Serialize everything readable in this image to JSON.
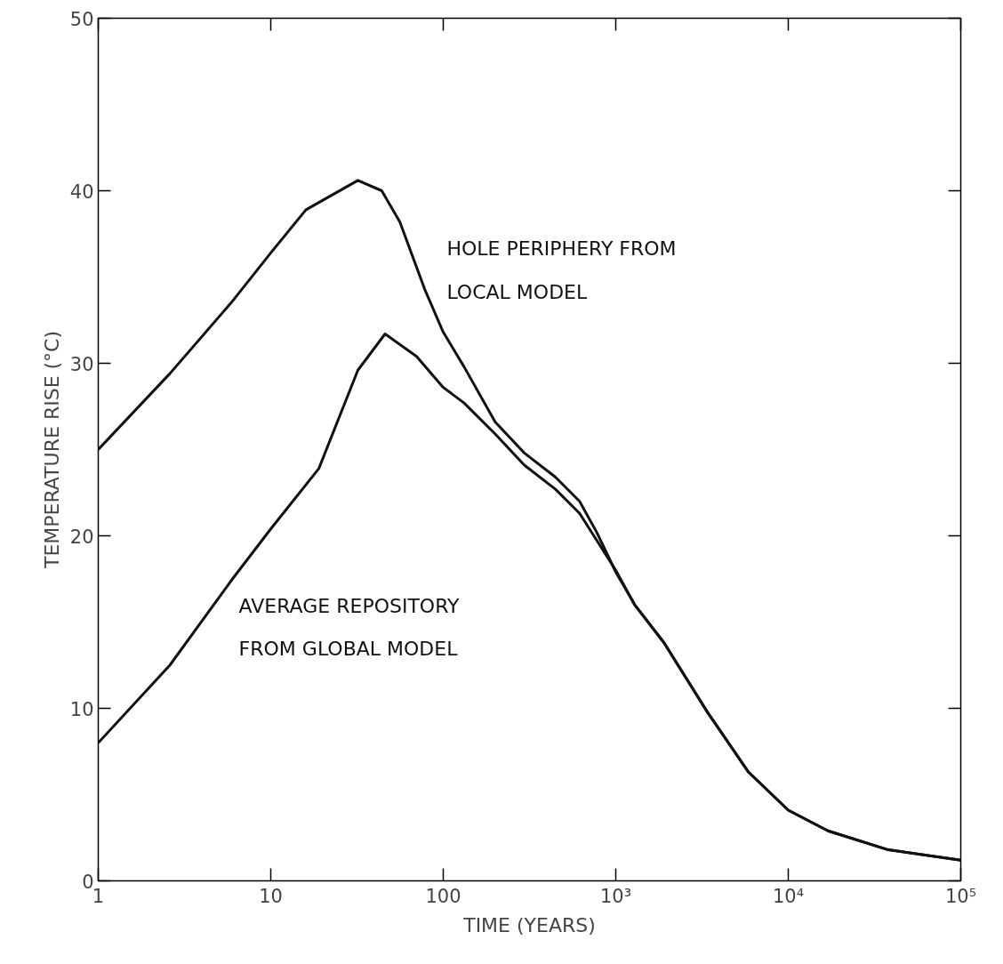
{
  "chart_data": {
    "type": "line",
    "xlabel": "TIME (YEARS)",
    "ylabel": "TEMPERATURE RISE (°C)",
    "log": "x",
    "xlim": [
      1,
      100000
    ],
    "xticks": [
      1,
      10,
      100,
      {
        "value": 1000,
        "label": "10³"
      },
      {
        "value": 10000,
        "label": "10⁴"
      },
      {
        "value": 100000,
        "label": "10⁵"
      }
    ],
    "ylim": [
      0,
      50
    ],
    "yticks": [
      0,
      10,
      20,
      30,
      40,
      50
    ],
    "grid": false,
    "marker": "none",
    "line_style": "solid",
    "series": [
      {
        "color": "#111111",
        "x": [
          1,
          2.6,
          6,
          10,
          16,
          32,
          44,
          56,
          78,
          100,
          132,
          200,
          295,
          447,
          617,
          776,
          1000,
          1288,
          1905,
          3388,
          5888,
          10000,
          16982,
          38019,
          100000
        ],
        "values": [
          25.0,
          29.4,
          33.6,
          36.4,
          38.9,
          40.6,
          40.0,
          38.2,
          34.3,
          31.8,
          29.8,
          26.6,
          24.8,
          23.4,
          22.0,
          20.2,
          17.9,
          16.0,
          13.8,
          9.8,
          6.3,
          4.1,
          2.9,
          1.8,
          1.2
        ]
      },
      {
        "color": "#111111",
        "x": [
          1,
          2.6,
          6,
          10,
          19,
          32,
          46,
          70,
          100,
          132,
          200,
          295,
          447,
          617,
          1000,
          1288,
          1905,
          3388,
          5888,
          10000,
          16982,
          38019,
          100000
        ],
        "values": [
          8.0,
          12.5,
          17.5,
          20.4,
          23.9,
          29.6,
          31.7,
          30.4,
          28.6,
          27.7,
          25.9,
          24.1,
          22.7,
          21.3,
          18.0,
          16.0,
          13.8,
          9.8,
          6.3,
          4.1,
          2.9,
          1.8,
          1.2
        ]
      }
    ],
    "annotations": [
      "HOLE PERIPHERY FROM",
      "LOCAL MODEL",
      "AVERAGE REPOSITORY",
      "FROM GLOBAL MODEL"
    ]
  }
}
